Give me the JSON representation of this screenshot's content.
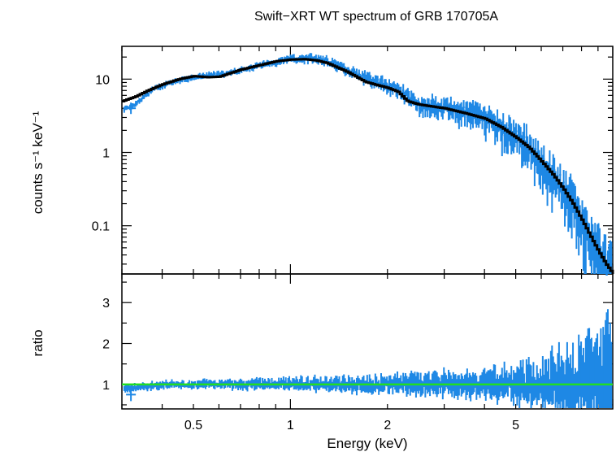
{
  "chart_data": [
    {
      "type": "line",
      "title": "Swift−XRT WT spectrum of GRB 170705A",
      "ylabel": "counts s⁻¹ keV⁻¹",
      "xscale": "log",
      "yscale": "log",
      "xlim": [
        0.3,
        10
      ],
      "ylim": [
        0.022,
        28
      ],
      "yticks": [
        {
          "label": "10",
          "value": 10
        },
        {
          "label": "1",
          "value": 1
        },
        {
          "label": "0.1",
          "value": 0.1
        }
      ],
      "colors": {
        "data": "#1e88e5",
        "model": "#000000"
      },
      "series": [
        {
          "role": "model",
          "x": [
            0.3,
            0.33,
            0.36,
            0.4,
            0.45,
            0.5,
            0.55,
            0.6,
            0.7,
            0.8,
            0.9,
            1.0,
            1.1,
            1.2,
            1.3,
            1.5,
            1.7,
            1.85,
            2.0,
            2.15,
            2.3,
            2.5,
            3.0,
            3.5,
            4.0,
            4.5,
            5.0,
            5.5,
            6.0,
            6.5,
            7.0,
            7.5,
            8.0,
            8.5,
            9.0,
            9.5,
            10.0
          ],
          "y": [
            5.0,
            5.8,
            7.0,
            8.5,
            10.0,
            11.0,
            10.6,
            10.8,
            13.5,
            15.5,
            17.5,
            18.5,
            18.7,
            18.0,
            16.5,
            12.5,
            9.2,
            8.3,
            7.6,
            6.7,
            5.0,
            4.5,
            4.0,
            3.4,
            2.9,
            2.2,
            1.6,
            1.15,
            0.75,
            0.5,
            0.32,
            0.2,
            0.12,
            0.072,
            0.045,
            0.03,
            0.022
          ]
        },
        {
          "role": "data",
          "x": [
            0.32,
            0.38,
            0.45,
            0.55,
            0.65,
            0.75,
            0.85,
            1.0,
            1.15,
            1.3,
            1.5,
            1.8,
            2.1,
            2.5,
            3.0,
            3.5,
            4.0,
            4.5,
            5.0,
            5.5,
            6.0,
            6.5,
            7.0,
            7.5,
            8.0,
            8.5,
            9.0,
            9.5
          ],
          "y": [
            4.0,
            7.6,
            9.5,
            11.2,
            12.0,
            14.2,
            16.3,
            18.8,
            19.5,
            17.8,
            13.5,
            9.5,
            7.8,
            4.6,
            4.1,
            3.5,
            3.0,
            2.3,
            1.7,
            1.2,
            0.78,
            0.52,
            0.34,
            0.21,
            0.13,
            0.075,
            0.047,
            0.031
          ]
        }
      ]
    },
    {
      "type": "line",
      "ylabel": "ratio",
      "xlabel": "Energy (keV)",
      "xscale": "log",
      "xlim": [
        0.3,
        10
      ],
      "ylim": [
        0.4,
        3.7
      ],
      "yticks": [
        {
          "label": "1",
          "value": 1
        },
        {
          "label": "2",
          "value": 2
        },
        {
          "label": "3",
          "value": 3
        }
      ],
      "xticks": [
        {
          "label": "0.5",
          "value": 0.5
        },
        {
          "label": "1",
          "value": 1
        },
        {
          "label": "2",
          "value": 2
        },
        {
          "label": "5",
          "value": 5
        }
      ],
      "colors": {
        "data": "#1e88e5",
        "reference": "#22dd22"
      },
      "reference_line": 1,
      "series": [
        {
          "role": "data",
          "x": [
            0.32,
            0.4,
            0.5,
            0.6,
            0.7,
            0.8,
            0.9,
            1.0,
            1.2,
            1.4,
            1.6,
            1.8,
            2.0,
            2.3,
            2.6,
            3.0,
            3.5,
            4.0,
            4.5,
            5.0,
            5.5,
            6.0,
            6.5,
            7.0,
            7.5,
            8.0,
            8.5,
            9.0,
            9.5
          ],
          "y": [
            0.75,
            0.97,
            1.0,
            1.02,
            0.98,
            1.03,
            0.99,
            1.01,
            1.0,
            0.98,
            1.02,
            0.97,
            1.0,
            1.04,
            0.98,
            1.05,
            0.97,
            1.08,
            0.95,
            1.1,
            0.92,
            1.15,
            1.05,
            1.2,
            0.95,
            1.4,
            1.1,
            1.6,
            1.0
          ],
          "err": [
            0.12,
            0.1,
            0.11,
            0.12,
            0.14,
            0.15,
            0.16,
            0.18,
            0.19,
            0.2,
            0.22,
            0.25,
            0.25,
            0.28,
            0.3,
            0.32,
            0.35,
            0.38,
            0.42,
            0.48,
            0.55,
            0.65,
            0.75,
            0.85,
            0.95,
            1.1,
            1.2,
            1.4,
            1.6
          ]
        }
      ]
    }
  ]
}
